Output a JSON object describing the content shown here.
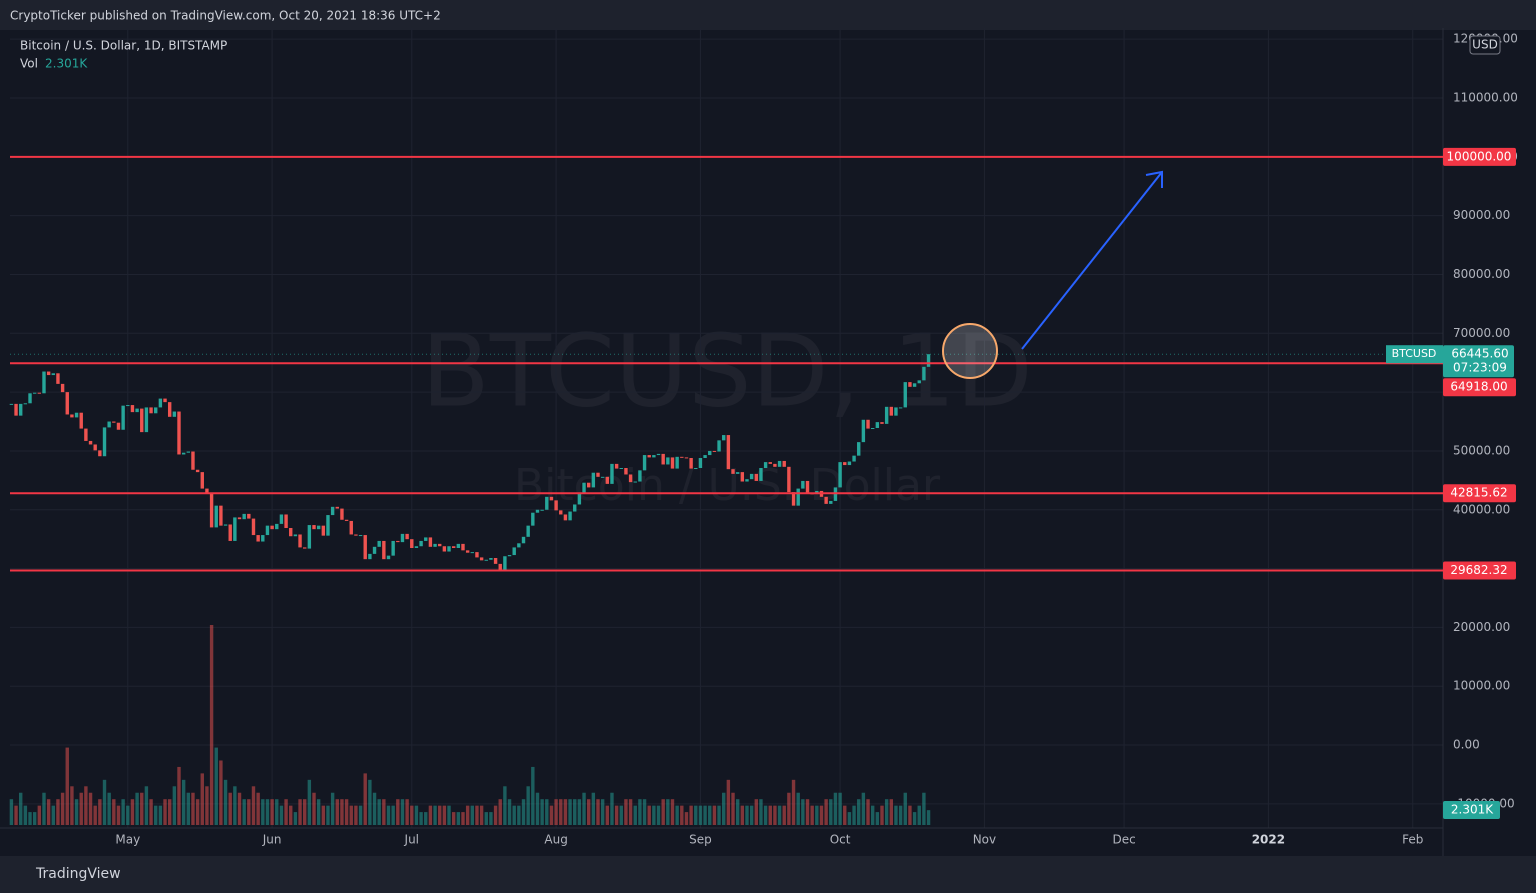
{
  "header": {
    "publisher": "CryptoTicker published on TradingView.com, Oct 20, 2021 18:36 UTC+2"
  },
  "footer": {
    "brand": "TradingView"
  },
  "chart_data": {
    "type": "candlestick",
    "title": "Bitcoin / U.S. Dollar, 1D, BITSTAMP",
    "watermark": "BTCUSD, 1D",
    "watermark_subtitle": "Bitcoin / U.S. Dollar",
    "symbol": "BTCUSD",
    "currency": "USD",
    "last_price_label": "66445.60",
    "countdown": "07:23:09",
    "values": [
      58000,
      56000,
      58000,
      58100,
      59800,
      59900,
      59800,
      63500,
      62900,
      63200,
      61400,
      60000,
      56200,
      55700,
      56500,
      53800,
      51700,
      51100,
      50100,
      49100,
      54000,
      55000,
      54800,
      53600,
      57700,
      57800,
      56600,
      57200,
      53200,
      57400,
      56400,
      57400,
      58900,
      58300,
      55800,
      56700,
      49400,
      49700,
      49900,
      46800,
      46400,
      43600,
      42900,
      37000,
      40700,
      37300,
      37500,
      34700,
      38700,
      38400,
      39300,
      38500,
      35700,
      34600,
      35700,
      37300,
      36700,
      37600,
      39200,
      36900,
      35500,
      35800,
      33600,
      33400,
      37400,
      36700,
      37300,
      35600,
      39100,
      40500,
      40200,
      38300,
      38100,
      35800,
      35600,
      35700,
      31600,
      32500,
      33700,
      34700,
      31600,
      32200,
      34700,
      34500,
      35900,
      35000,
      33500,
      33800,
      34700,
      35300,
      33700,
      34200,
      33800,
      32900,
      33800,
      33500,
      34200,
      33100,
      32700,
      32800,
      31900,
      31400,
      31500,
      31800,
      30800,
      29800,
      32100,
      32300,
      33600,
      34300,
      35400,
      37300,
      39500,
      40000,
      40000,
      42200,
      41600,
      39900,
      39200,
      38200,
      39700,
      40900,
      42800,
      44600,
      43800,
      46300,
      45600,
      45600,
      44400,
      47800,
      47000,
      47100,
      46000,
      44700,
      44800,
      46700,
      49300,
      48900,
      49300,
      49500,
      47700,
      48900,
      47000,
      49000,
      48900,
      48800,
      47000,
      47100,
      48800,
      49300,
      50000,
      49900,
      51800,
      52700,
      46900,
      46100,
      46400,
      44800,
      45200,
      46100,
      44900,
      47100,
      48100,
      47800,
      47300,
      48300,
      47300,
      43000,
      40700,
      43600,
      44900,
      42800,
      42700,
      43200,
      42200,
      41000,
      41500,
      43800,
      48100,
      47600,
      48200,
      49200,
      51500,
      55300,
      53800,
      53900,
      54900,
      54600,
      57500,
      56000,
      57400,
      57400,
      61700,
      60900,
      61500,
      62000,
      64300,
      66445.6
    ],
    "volume": {
      "name": "Vol",
      "last_label": "2.301K",
      "ylim": [
        0,
        31
      ],
      "values": [
        4,
        3,
        5,
        3,
        2,
        2,
        3,
        5,
        4,
        3,
        4,
        5,
        12,
        6,
        4,
        5,
        6,
        5,
        3,
        4,
        7,
        5,
        4,
        3,
        4,
        3,
        4,
        5,
        5,
        6,
        4,
        3,
        3,
        4,
        4,
        6,
        9,
        7,
        5,
        5,
        4,
        8,
        6,
        31,
        12,
        10,
        7,
        5,
        6,
        5,
        4,
        4,
        6,
        5,
        4,
        4,
        4,
        4,
        3,
        4,
        3,
        2,
        4,
        4,
        7,
        5,
        4,
        3,
        3,
        5,
        4,
        4,
        4,
        3,
        3,
        3,
        8,
        7,
        5,
        4,
        4,
        3,
        3,
        4,
        4,
        4,
        3,
        3,
        2,
        2,
        3,
        3,
        3,
        3,
        3,
        2,
        2,
        2,
        3,
        3,
        3,
        3,
        2,
        2,
        3,
        4,
        6,
        4,
        3,
        3,
        4,
        6,
        9,
        5,
        4,
        4,
        3,
        4,
        4,
        4,
        4,
        4,
        4,
        5,
        4,
        5,
        4,
        4,
        3,
        5,
        3,
        3,
        4,
        4,
        3,
        4,
        4,
        3,
        3,
        3,
        4,
        4,
        4,
        3,
        3,
        2,
        3,
        3,
        3,
        3,
        3,
        3,
        3,
        5,
        7,
        5,
        4,
        3,
        3,
        3,
        4,
        4,
        3,
        3,
        3,
        3,
        3,
        5,
        7,
        5,
        4,
        4,
        3,
        3,
        3,
        4,
        4,
        5,
        5,
        3,
        2,
        3,
        4,
        5,
        4,
        3,
        2,
        3,
        4,
        4,
        3,
        3,
        5,
        3,
        2,
        3,
        5,
        2.301
      ]
    },
    "levels": [
      {
        "value": 100000,
        "label": "100000.00"
      },
      {
        "value": 64918,
        "label": "64918.00"
      },
      {
        "value": 42815.62,
        "label": "42815.62"
      },
      {
        "value": 29682.32,
        "label": "29682.32"
      }
    ],
    "ylim": [
      -14100,
      121900
    ],
    "yticks": [
      {
        "value": 120000,
        "label": "120000.00"
      },
      {
        "value": 110000,
        "label": "110000.00"
      },
      {
        "value": 100000,
        "label": "100000.00"
      },
      {
        "value": 90000,
        "label": "90000.00"
      },
      {
        "value": 80000,
        "label": "80000.00"
      },
      {
        "value": 70000,
        "label": "70000.00"
      },
      {
        "value": 60000,
        "label": "60000.00"
      },
      {
        "value": 50000,
        "label": "50000.00"
      },
      {
        "value": 40000,
        "label": "40000.00"
      },
      {
        "value": 30000,
        "label": "30000.00"
      },
      {
        "value": 20000,
        "label": "20000.00"
      },
      {
        "value": 10000,
        "label": "10000.00"
      },
      {
        "value": 0,
        "label": "0.00"
      },
      {
        "value": -10000,
        "label": "-10000.00"
      }
    ],
    "xlim": [
      -0.3,
      307.5
    ],
    "xticks": [
      {
        "value": 25,
        "label": "May"
      },
      {
        "value": 56,
        "label": "Jun"
      },
      {
        "value": 86,
        "label": "Jul"
      },
      {
        "value": 117,
        "label": "Aug"
      },
      {
        "value": 148,
        "label": "Sep"
      },
      {
        "value": 178,
        "label": "Oct"
      },
      {
        "value": 209,
        "label": "Nov"
      },
      {
        "value": 239,
        "label": "Dec"
      },
      {
        "value": 270,
        "label": "2022"
      },
      {
        "value": 301,
        "label": "Feb"
      }
    ],
    "grid": true,
    "colors": {
      "up": "#26a69a",
      "down": "#ef5350",
      "level": "#f23645"
    }
  }
}
